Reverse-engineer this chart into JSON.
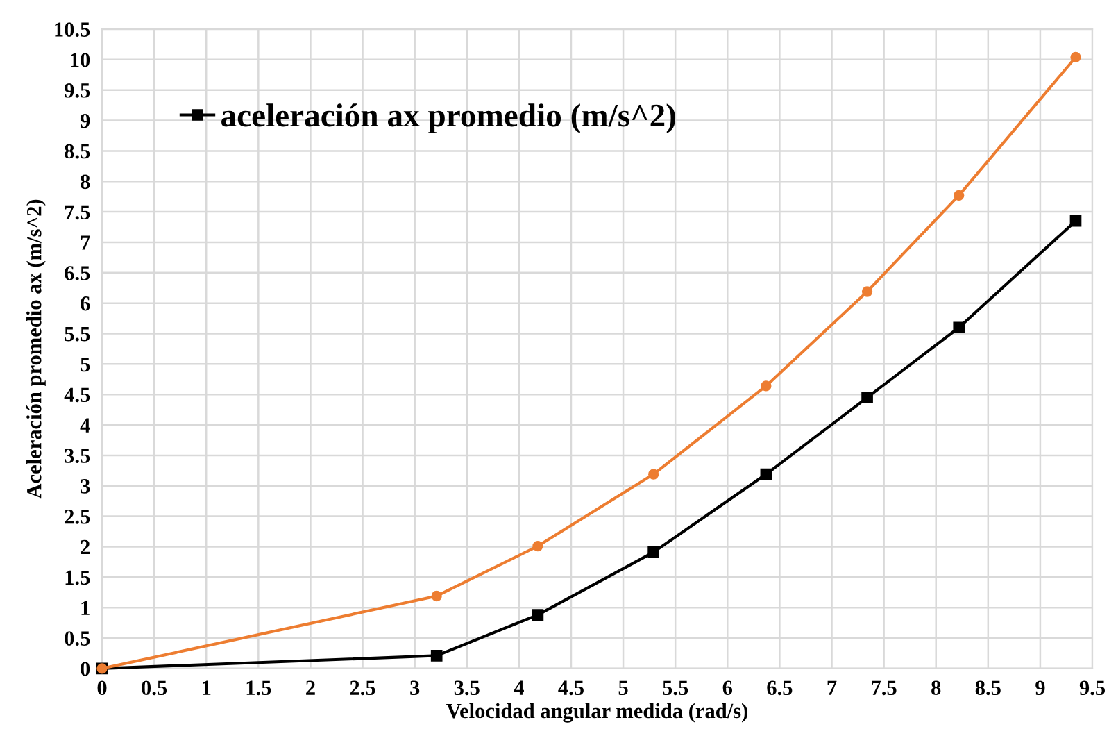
{
  "chart_data": {
    "type": "line",
    "xlabel": "Velocidad angular medida (rad/s)",
    "ylabel": "Aceleración promedio ax (m/s^2)",
    "xlim": [
      0,
      9.5
    ],
    "xticks": [
      0,
      0.5,
      1,
      1.5,
      2,
      2.5,
      3,
      3.5,
      4,
      4.5,
      5,
      5.5,
      6,
      6.5,
      7,
      7.5,
      8,
      8.5,
      9,
      9.5
    ],
    "ylim": [
      0,
      10.5
    ],
    "yticks": [
      0,
      0.5,
      1,
      1.5,
      2,
      2.5,
      3,
      3.5,
      4,
      4.5,
      5,
      5.5,
      6,
      6.5,
      7,
      7.5,
      8,
      8.5,
      9,
      9.5,
      10,
      10.5
    ],
    "grid": true,
    "legend": "top left",
    "series": [
      {
        "name": "aceleración ax promedio (m/s^2)",
        "color": "#000000",
        "marker": "square",
        "x": [
          0,
          3.21,
          4.18,
          5.29,
          6.37,
          7.34,
          8.22,
          9.34
        ],
        "values": [
          0,
          0.21,
          0.88,
          1.91,
          3.19,
          4.45,
          5.6,
          7.35
        ]
      },
      {
        "color": "#ed7d31",
        "marker": "circle",
        "x": [
          0,
          3.21,
          4.18,
          5.29,
          6.37,
          7.34,
          8.22,
          9.34
        ],
        "values": [
          0,
          1.19,
          2.01,
          3.19,
          4.64,
          6.19,
          7.77,
          10.04
        ]
      }
    ]
  }
}
